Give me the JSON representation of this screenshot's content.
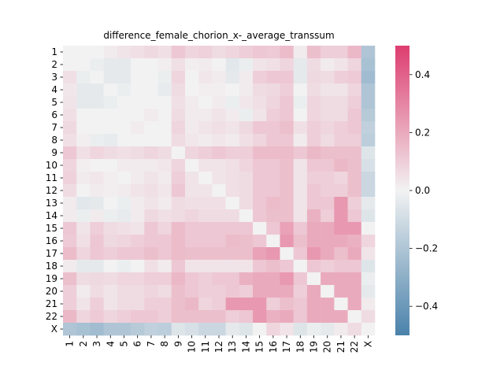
{
  "chart_data": {
    "type": "heatmap",
    "title": "difference_female_chorion_x-_average_transsum",
    "xlabel": "",
    "ylabel": "",
    "rows": [
      "1",
      "2",
      "3",
      "4",
      "5",
      "6",
      "7",
      "8",
      "9",
      "10",
      "11",
      "12",
      "13",
      "14",
      "15",
      "16",
      "17",
      "18",
      "19",
      "20",
      "21",
      "22",
      "X"
    ],
    "cols": [
      "1",
      "2",
      "3",
      "4",
      "5",
      "6",
      "7",
      "8",
      "9",
      "10",
      "11",
      "12",
      "13",
      "14",
      "15",
      "16",
      "17",
      "18",
      "19",
      "20",
      "21",
      "22",
      "X"
    ],
    "values": [
      [
        0.0,
        0.0,
        0.0,
        0.02,
        0.04,
        0.05,
        0.07,
        0.05,
        0.12,
        0.08,
        0.09,
        0.06,
        0.08,
        0.1,
        0.12,
        0.11,
        0.15,
        0.02,
        0.14,
        0.1,
        0.1,
        0.16,
        -0.2
      ],
      [
        0.0,
        0.0,
        -0.02,
        -0.04,
        -0.04,
        0.0,
        0.0,
        0.01,
        0.05,
        0.01,
        0.02,
        0.0,
        -0.05,
        -0.02,
        0.04,
        0.05,
        0.08,
        -0.04,
        0.06,
        0.02,
        0.04,
        0.08,
        -0.22
      ],
      [
        0.05,
        -0.02,
        0.0,
        -0.04,
        -0.04,
        0.0,
        0.0,
        -0.02,
        0.08,
        0.0,
        0.03,
        0.02,
        -0.04,
        0.02,
        0.1,
        0.12,
        0.12,
        -0.04,
        0.07,
        0.06,
        0.1,
        0.11,
        -0.24
      ],
      [
        0.03,
        -0.04,
        -0.04,
        0.0,
        -0.02,
        0.0,
        0.0,
        -0.03,
        0.06,
        0.0,
        0.01,
        0.01,
        0.0,
        0.02,
        0.06,
        0.07,
        0.1,
        0.0,
        0.06,
        0.04,
        0.04,
        0.08,
        -0.2
      ],
      [
        0.04,
        -0.04,
        -0.04,
        -0.02,
        0.0,
        0.0,
        0.0,
        0.0,
        0.05,
        0.02,
        0.0,
        0.02,
        -0.02,
        0.03,
        0.05,
        0.08,
        0.12,
        -0.02,
        0.08,
        0.06,
        0.06,
        0.1,
        -0.2
      ],
      [
        0.05,
        0.0,
        0.0,
        0.0,
        0.0,
        0.0,
        0.02,
        0.0,
        0.06,
        0.02,
        0.02,
        0.04,
        0.02,
        -0.02,
        0.04,
        0.1,
        0.12,
        0.0,
        0.08,
        0.06,
        0.06,
        0.12,
        -0.18
      ],
      [
        0.07,
        0.0,
        0.0,
        0.0,
        0.0,
        0.02,
        0.0,
        0.0,
        0.08,
        0.02,
        0.04,
        0.05,
        0.04,
        0.07,
        0.12,
        0.12,
        0.14,
        0.05,
        0.1,
        0.08,
        0.1,
        0.12,
        -0.15
      ],
      [
        0.05,
        0.01,
        -0.02,
        -0.03,
        0.0,
        0.0,
        0.0,
        0.0,
        0.06,
        0.03,
        0.02,
        0.03,
        0.02,
        0.05,
        0.08,
        0.12,
        0.12,
        0.02,
        0.1,
        0.06,
        0.1,
        0.1,
        -0.16
      ],
      [
        0.12,
        0.05,
        0.08,
        0.06,
        0.05,
        0.06,
        0.08,
        0.06,
        0.0,
        0.08,
        0.1,
        0.12,
        0.1,
        0.1,
        0.15,
        0.15,
        0.15,
        0.12,
        0.16,
        0.14,
        0.14,
        0.14,
        -0.06
      ],
      [
        0.08,
        0.01,
        0.0,
        0.0,
        0.02,
        0.02,
        0.02,
        0.03,
        0.08,
        0.0,
        0.04,
        0.04,
        0.05,
        0.08,
        0.12,
        0.12,
        0.14,
        0.04,
        0.12,
        0.12,
        0.16,
        0.14,
        -0.08
      ],
      [
        0.09,
        0.02,
        0.03,
        0.01,
        0.0,
        0.02,
        0.04,
        0.02,
        0.1,
        0.04,
        0.0,
        0.04,
        0.05,
        0.06,
        0.12,
        0.12,
        0.14,
        0.04,
        0.1,
        0.1,
        0.08,
        0.14,
        -0.12
      ],
      [
        0.06,
        0.0,
        0.02,
        0.01,
        0.02,
        0.04,
        0.05,
        0.03,
        0.12,
        0.04,
        0.04,
        0.0,
        0.05,
        0.06,
        0.12,
        0.12,
        0.14,
        0.04,
        0.12,
        0.1,
        0.1,
        0.14,
        -0.12
      ],
      [
        0.02,
        -0.05,
        -0.04,
        0.0,
        -0.02,
        0.02,
        0.04,
        0.02,
        0.06,
        0.05,
        0.05,
        0.05,
        0.0,
        0.06,
        0.12,
        0.15,
        0.14,
        0.04,
        0.12,
        0.12,
        0.25,
        0.1,
        -0.04
      ],
      [
        0.02,
        -0.02,
        0.02,
        -0.02,
        -0.03,
        0.02,
        0.07,
        0.05,
        0.06,
        0.08,
        0.06,
        0.06,
        0.06,
        0.0,
        0.12,
        0.14,
        0.14,
        0.04,
        0.18,
        0.1,
        0.25,
        0.12,
        -0.06
      ],
      [
        0.12,
        0.04,
        0.1,
        0.06,
        0.05,
        0.04,
        0.12,
        0.08,
        0.15,
        0.12,
        0.12,
        0.12,
        0.12,
        0.12,
        0.0,
        0.12,
        0.22,
        0.12,
        0.2,
        0.2,
        0.25,
        0.25,
        0.0
      ],
      [
        0.11,
        0.05,
        0.12,
        0.07,
        0.08,
        0.1,
        0.12,
        0.12,
        0.15,
        0.12,
        0.12,
        0.12,
        0.15,
        0.14,
        0.12,
        0.0,
        0.25,
        0.14,
        0.2,
        0.2,
        0.2,
        0.18,
        0.08
      ],
      [
        0.15,
        0.08,
        0.12,
        0.1,
        0.12,
        0.12,
        0.14,
        0.12,
        0.15,
        0.14,
        0.14,
        0.14,
        0.14,
        0.14,
        0.22,
        0.25,
        0.0,
        0.12,
        0.25,
        0.2,
        0.14,
        0.2,
        0.04
      ],
      [
        0.02,
        -0.04,
        -0.04,
        0.0,
        -0.02,
        0.0,
        0.05,
        0.02,
        0.12,
        0.04,
        0.04,
        0.04,
        0.04,
        0.04,
        0.12,
        0.14,
        0.12,
        0.0,
        0.12,
        0.1,
        0.12,
        0.12,
        -0.06
      ],
      [
        0.14,
        0.06,
        0.07,
        0.06,
        0.08,
        0.08,
        0.1,
        0.1,
        0.16,
        0.12,
        0.1,
        0.12,
        0.12,
        0.18,
        0.2,
        0.2,
        0.25,
        0.12,
        0.0,
        0.2,
        0.2,
        0.2,
        -0.02
      ],
      [
        0.1,
        0.02,
        0.06,
        0.04,
        0.06,
        0.06,
        0.08,
        0.06,
        0.14,
        0.12,
        0.1,
        0.1,
        0.12,
        0.1,
        0.2,
        0.2,
        0.2,
        0.1,
        0.2,
        0.0,
        0.2,
        0.2,
        -0.04
      ],
      [
        0.1,
        0.04,
        0.1,
        0.04,
        0.06,
        0.06,
        0.1,
        0.1,
        0.14,
        0.16,
        0.08,
        0.1,
        0.25,
        0.25,
        0.25,
        0.1,
        0.14,
        0.12,
        0.2,
        0.2,
        0.0,
        0.2,
        0.02
      ],
      [
        0.16,
        0.08,
        0.11,
        0.08,
        0.1,
        0.12,
        0.12,
        0.1,
        0.14,
        0.14,
        0.14,
        0.14,
        0.1,
        0.12,
        0.25,
        0.18,
        0.2,
        0.12,
        0.2,
        0.2,
        0.2,
        0.0,
        0.06
      ],
      [
        -0.2,
        -0.22,
        -0.24,
        -0.2,
        -0.2,
        -0.18,
        -0.15,
        -0.16,
        -0.06,
        -0.08,
        -0.12,
        -0.12,
        -0.04,
        -0.06,
        0.0,
        0.08,
        0.04,
        -0.06,
        -0.02,
        -0.04,
        0.02,
        0.06,
        0.0
      ]
    ],
    "vmin": -0.5,
    "vmax": 0.5,
    "colormap": {
      "negative": "#4a82ab",
      "center": "#f2f2f2",
      "positive": "#dd3d6f"
    },
    "colorbar_ticks": [
      -0.4,
      -0.2,
      0.0,
      0.2,
      0.4
    ],
    "colorbar_tick_labels": [
      "−0.4",
      "−0.2",
      "0.0",
      "0.2",
      "0.4"
    ],
    "grid": false,
    "legend": "colorbar-right"
  }
}
